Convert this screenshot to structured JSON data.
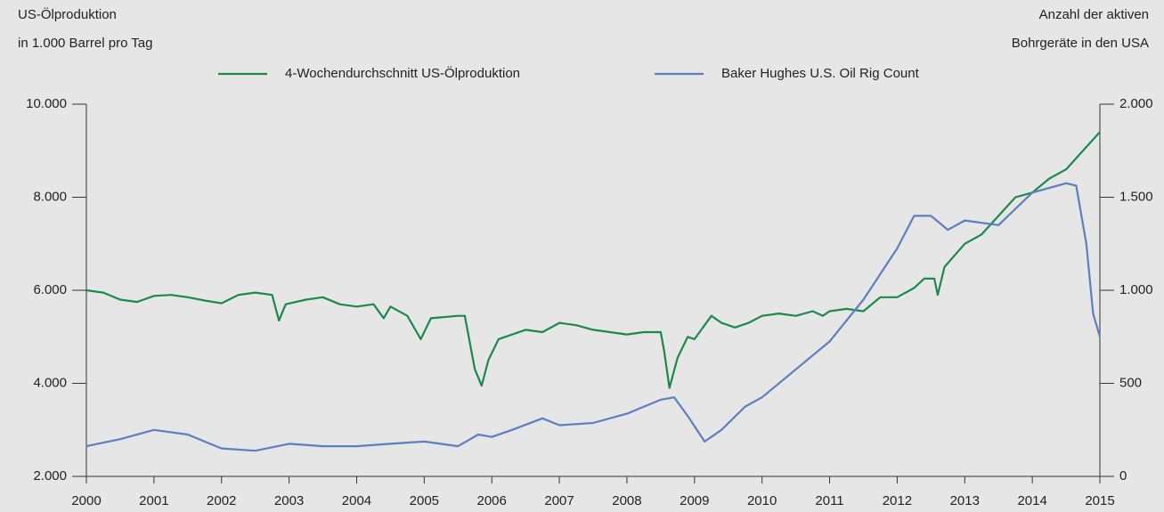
{
  "chart_data": {
    "type": "line",
    "ylabel": [
      "US-Ölproduktion",
      "in 1.000 Barrel pro Tag"
    ],
    "y2label": [
      "Anzahl der aktiven",
      "Bohrgeräte in den USA"
    ],
    "xlim": [
      2000,
      2015
    ],
    "xticks": [
      2000,
      2001,
      2002,
      2003,
      2004,
      2005,
      2006,
      2007,
      2008,
      2009,
      2010,
      2011,
      2012,
      2013,
      2014,
      2015
    ],
    "ylim": [
      2000,
      10000
    ],
    "yticks": [
      {
        "value": 2000,
        "label": "2.000"
      },
      {
        "value": 4000,
        "label": "4.000"
      },
      {
        "value": 6000,
        "label": "6.000"
      },
      {
        "value": 8000,
        "label": "8.000"
      },
      {
        "value": 10000,
        "label": "10.000"
      }
    ],
    "y2lim": [
      0,
      2000
    ],
    "y2ticks": [
      0,
      500,
      {
        "value": 1000,
        "label": "1.000"
      },
      {
        "value": 1500,
        "label": "1.500"
      },
      {
        "value": 2000,
        "label": "2.000"
      }
    ],
    "series": [
      {
        "name": "4-Wochendurchschnitt US-Ölproduktion",
        "color": "#1a8a4a",
        "x": [
          2000,
          2000.25,
          2000.5,
          2000.75,
          2001,
          2001.25,
          2001.5,
          2001.75,
          2002,
          2002.25,
          2002.5,
          2002.75,
          2002.85,
          2002.95,
          2003.25,
          2003.5,
          2003.75,
          2004,
          2004.25,
          2004.4,
          2004.5,
          2004.75,
          2004.95,
          2005.1,
          2005.5,
          2005.6,
          2005.75,
          2005.85,
          2005.95,
          2006.1,
          2006.5,
          2006.75,
          2007,
          2007.25,
          2007.5,
          2007.75,
          2008,
          2008.25,
          2008.5,
          2008.55,
          2008.63,
          2008.75,
          2008.9,
          2009,
          2009.25,
          2009.4,
          2009.6,
          2009.8,
          2010,
          2010.25,
          2010.5,
          2010.75,
          2010.9,
          2011,
          2011.25,
          2011.5,
          2011.75,
          2012,
          2012.25,
          2012.4,
          2012.55,
          2012.6,
          2012.7,
          2013,
          2013.25,
          2013.5,
          2013.75,
          2014,
          2014.25,
          2014.5,
          2014.75,
          2015
        ],
        "values": [
          6000,
          5950,
          5800,
          5750,
          5880,
          5900,
          5850,
          5780,
          5720,
          5900,
          5950,
          5900,
          5350,
          5700,
          5800,
          5850,
          5700,
          5650,
          5700,
          5400,
          5650,
          5450,
          4950,
          5400,
          5450,
          5450,
          4300,
          3950,
          4500,
          4950,
          5150,
          5100,
          5300,
          5250,
          5150,
          5100,
          5050,
          5100,
          5100,
          4700,
          3900,
          4550,
          5000,
          4950,
          5450,
          5300,
          5200,
          5300,
          5450,
          5500,
          5450,
          5550,
          5450,
          5550,
          5600,
          5550,
          5850,
          5850,
          6050,
          6250,
          6250,
          5900,
          6500,
          7000,
          7200,
          7600,
          8000,
          8100,
          8400,
          8600,
          9000,
          9400
        ]
      },
      {
        "name": "Baker Hughes U.S. Oil Rig Count",
        "color": "#5b7fbf",
        "axis": "y2",
        "x": [
          2000,
          2000.5,
          2001,
          2001.5,
          2002,
          2002.5,
          2003,
          2003.5,
          2004,
          2004.5,
          2005,
          2005.5,
          2005.8,
          2006,
          2006.3,
          2006.75,
          2007,
          2007.5,
          2008,
          2008.5,
          2008.7,
          2008.9,
          2009.15,
          2009.4,
          2009.75,
          2010,
          2010.5,
          2011,
          2011.5,
          2012,
          2012.25,
          2012.5,
          2012.75,
          2013,
          2013.5,
          2014,
          2014.5,
          2014.65,
          2014.8,
          2014.9,
          2015
        ],
        "values": [
          162,
          200,
          250,
          225,
          150,
          138,
          175,
          162,
          162,
          175,
          187,
          162,
          225,
          212,
          250,
          312,
          275,
          287,
          337,
          412,
          425,
          325,
          187,
          250,
          375,
          425,
          575,
          725,
          950,
          1225,
          1400,
          1400,
          1325,
          1375,
          1350,
          1525,
          1575,
          1562,
          1250,
          875,
          750
        ]
      }
    ]
  }
}
